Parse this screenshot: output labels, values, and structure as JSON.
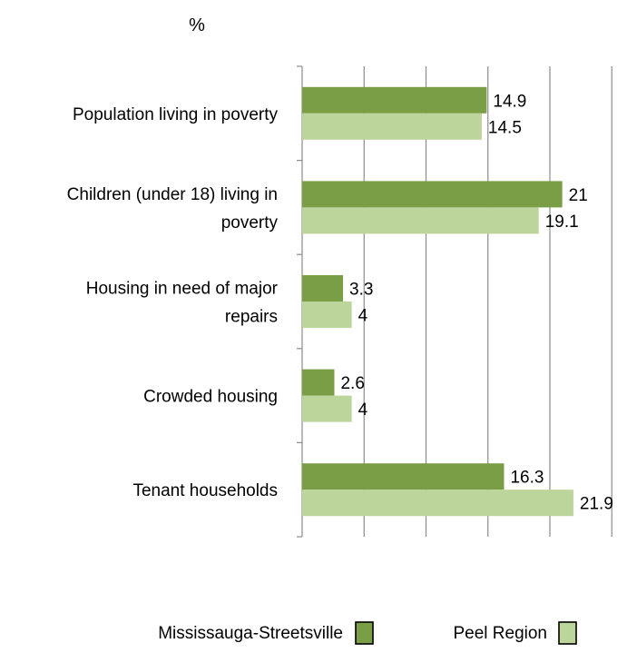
{
  "chart_data": {
    "type": "bar",
    "orientation": "horizontal",
    "unit_label": "%",
    "categories": [
      [
        "Population living in poverty"
      ],
      [
        "Children (under 18) living in",
        "poverty"
      ],
      [
        "Housing in need of major",
        "repairs"
      ],
      [
        "Crowded housing"
      ],
      [
        "Tenant households"
      ]
    ],
    "series": [
      {
        "name": "Mississauga-Streetsville",
        "color": "#7a9e45",
        "values": [
          14.9,
          21,
          3.3,
          2.6,
          16.3
        ]
      },
      {
        "name": "Peel Region",
        "color": "#bcd59a",
        "values": [
          14.5,
          19.1,
          4,
          4,
          21.9
        ]
      }
    ],
    "xlim": [
      0,
      25
    ],
    "grid": true,
    "legend_position": "bottom"
  }
}
